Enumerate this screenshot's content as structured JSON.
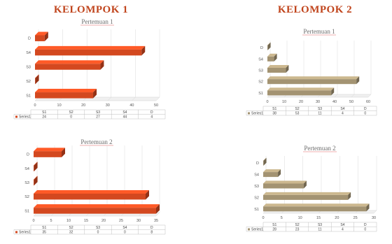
{
  "groups": [
    {
      "title": "KELOMPOK 1"
    },
    {
      "title": "KELOMPOK 2"
    }
  ],
  "chart_data": [
    {
      "type": "bar",
      "orientation": "horizontal",
      "title": "Pertemuan 1",
      "categories": [
        "S1",
        "S2",
        "S3",
        "S4",
        "D"
      ],
      "series": [
        {
          "name": "Series1",
          "values": [
            24,
            0,
            27,
            44,
            4
          ]
        }
      ],
      "xlim": [
        0,
        50
      ],
      "xticks": [
        0,
        10,
        20,
        30,
        40,
        50
      ],
      "color": "#d3481f",
      "data_table": true
    },
    {
      "type": "bar",
      "orientation": "horizontal",
      "title": "Pertemuan 1",
      "categories": [
        "S1",
        "S2",
        "S3",
        "S4",
        "D"
      ],
      "series": [
        {
          "name": "Series1",
          "values": [
            38,
            53,
            11,
            4,
            0
          ]
        }
      ],
      "xlim": [
        0,
        60
      ],
      "xticks": [
        0,
        10,
        20,
        30,
        40,
        50,
        60
      ],
      "color": "#a39372",
      "data_table": true
    },
    {
      "type": "bar",
      "orientation": "horizontal",
      "title": "Pertemuan 2",
      "categories": [
        "S1",
        "S2",
        "S3",
        "S4",
        "D"
      ],
      "series": [
        {
          "name": "Series1",
          "values": [
            35,
            32,
            0,
            0,
            8
          ]
        }
      ],
      "xlim": [
        0,
        35
      ],
      "xticks": [
        0,
        5,
        10,
        15,
        20,
        25,
        30,
        35
      ],
      "color": "#d3481f",
      "data_table": true
    },
    {
      "type": "bar",
      "orientation": "horizontal",
      "title": "Pertemuan 2",
      "categories": [
        "S1",
        "S2",
        "S3",
        "S4",
        "D"
      ],
      "series": [
        {
          "name": "Series1",
          "values": [
            28,
            23,
            11,
            4,
            0
          ]
        }
      ],
      "xlim": [
        0,
        30
      ],
      "xticks": [
        0,
        5,
        10,
        15,
        20,
        25,
        30
      ],
      "color": "#a39372",
      "data_table": true
    }
  ]
}
